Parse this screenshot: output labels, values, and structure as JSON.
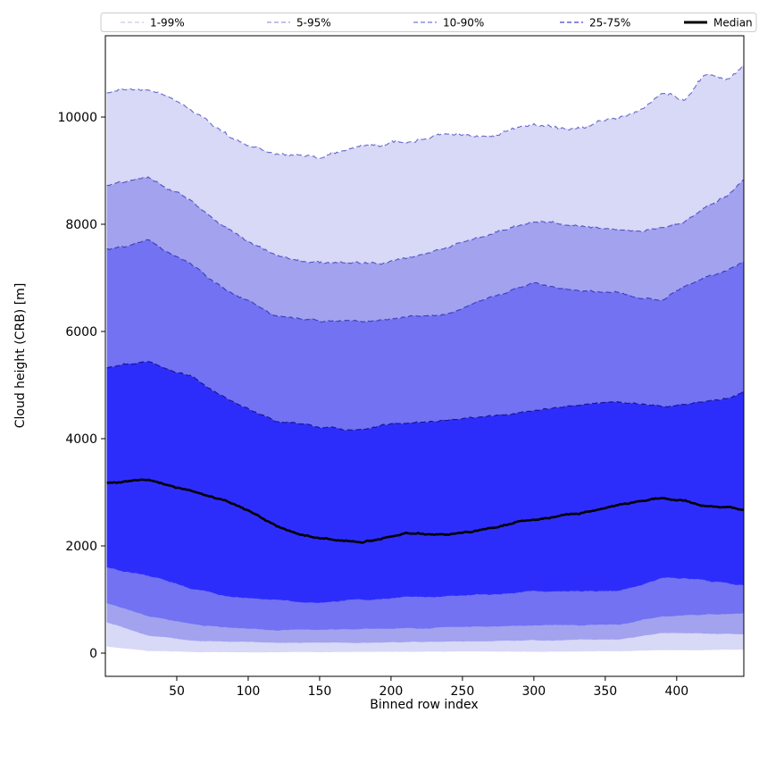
{
  "figure": {
    "background": "#ffffff"
  },
  "chart_data": {
    "type": "area",
    "title": "",
    "xlabel": "Binned row index",
    "ylabel": "Cloud height (CRB) [m]",
    "xlim": [
      0,
      447
    ],
    "ylim": [
      -430,
      11520
    ],
    "xticks": [
      50,
      100,
      150,
      200,
      250,
      300,
      350,
      400
    ],
    "yticks": [
      0,
      2000,
      4000,
      6000,
      8000,
      10000
    ],
    "grid": false,
    "legend_position": "top-outside expanded row",
    "legend_entries": [
      "1-99%",
      "5-95%",
      "10-90%",
      "25-75%",
      "Median"
    ],
    "bands": [
      {
        "label": "1-99%",
        "upper": "p99",
        "lower": "p1",
        "fill": "#d8d8f7",
        "edge": "#6a6acd",
        "legend_color": "#c9c9ea",
        "noise_amp": 80
      },
      {
        "label": "5-95%",
        "upper": "p95",
        "lower": "p5",
        "fill": "#a2a2ef",
        "edge": "#5353c6",
        "legend_color": "#9a9ae0",
        "noise_amp": 58
      },
      {
        "label": "10-90%",
        "upper": "p90",
        "lower": "p10",
        "fill": "#7272f2",
        "edge": "#3c3cbd",
        "legend_color": "#7474e8",
        "noise_amp": 50
      },
      {
        "label": "25-75%",
        "upper": "p75",
        "lower": "p25",
        "fill": "#2d2dfb",
        "edge": "#15158c",
        "legend_color": "#4444cf",
        "noise_amp": 42
      }
    ],
    "median": {
      "label": "Median",
      "color": "#000000",
      "noise_amp": 34
    },
    "x": [
      1,
      30,
      60,
      90,
      120,
      150,
      180,
      210,
      240,
      270,
      300,
      330,
      360,
      375,
      390,
      405,
      420,
      435,
      447
    ],
    "series": {
      "p99": [
        10450,
        10500,
        10130,
        9600,
        9350,
        9270,
        9430,
        9520,
        9680,
        9680,
        9850,
        9770,
        9950,
        10150,
        10500,
        10330,
        10800,
        10700,
        10950
      ],
      "p95": [
        8730,
        8850,
        8430,
        7820,
        7430,
        7270,
        7270,
        7350,
        7520,
        7820,
        8100,
        8020,
        7900,
        7920,
        7950,
        8050,
        8300,
        8500,
        8800
      ],
      "p90": [
        7520,
        7680,
        7270,
        6680,
        6270,
        6180,
        6150,
        6270,
        6350,
        6680,
        6930,
        6770,
        6700,
        6620,
        6570,
        6800,
        7000,
        7150,
        7300
      ],
      "p75": [
        5320,
        5430,
        5180,
        4680,
        4320,
        4220,
        4180,
        4320,
        4350,
        4400,
        4520,
        4600,
        4650,
        4620,
        4600,
        4650,
        4700,
        4750,
        4880
      ],
      "median": [
        3180,
        3220,
        3020,
        2770,
        2350,
        2130,
        2080,
        2250,
        2220,
        2320,
        2520,
        2600,
        2770,
        2830,
        2890,
        2860,
        2770,
        2700,
        2640
      ],
      "p25": [
        1600,
        1450,
        1220,
        1060,
        980,
        950,
        1000,
        1050,
        1080,
        1100,
        1150,
        1150,
        1170,
        1280,
        1390,
        1370,
        1350,
        1300,
        1270
      ],
      "p10": [
        930,
        700,
        560,
        470,
        430,
        430,
        450,
        470,
        490,
        500,
        520,
        520,
        530,
        620,
        700,
        710,
        720,
        740,
        760
      ],
      "p5": [
        570,
        330,
        230,
        200,
        190,
        190,
        200,
        215,
        220,
        230,
        240,
        240,
        250,
        310,
        370,
        365,
        360,
        355,
        350
      ],
      "p1": [
        120,
        40,
        20,
        15,
        15,
        15,
        20,
        25,
        25,
        30,
        30,
        30,
        35,
        45,
        55,
        55,
        55,
        60,
        60
      ]
    }
  }
}
